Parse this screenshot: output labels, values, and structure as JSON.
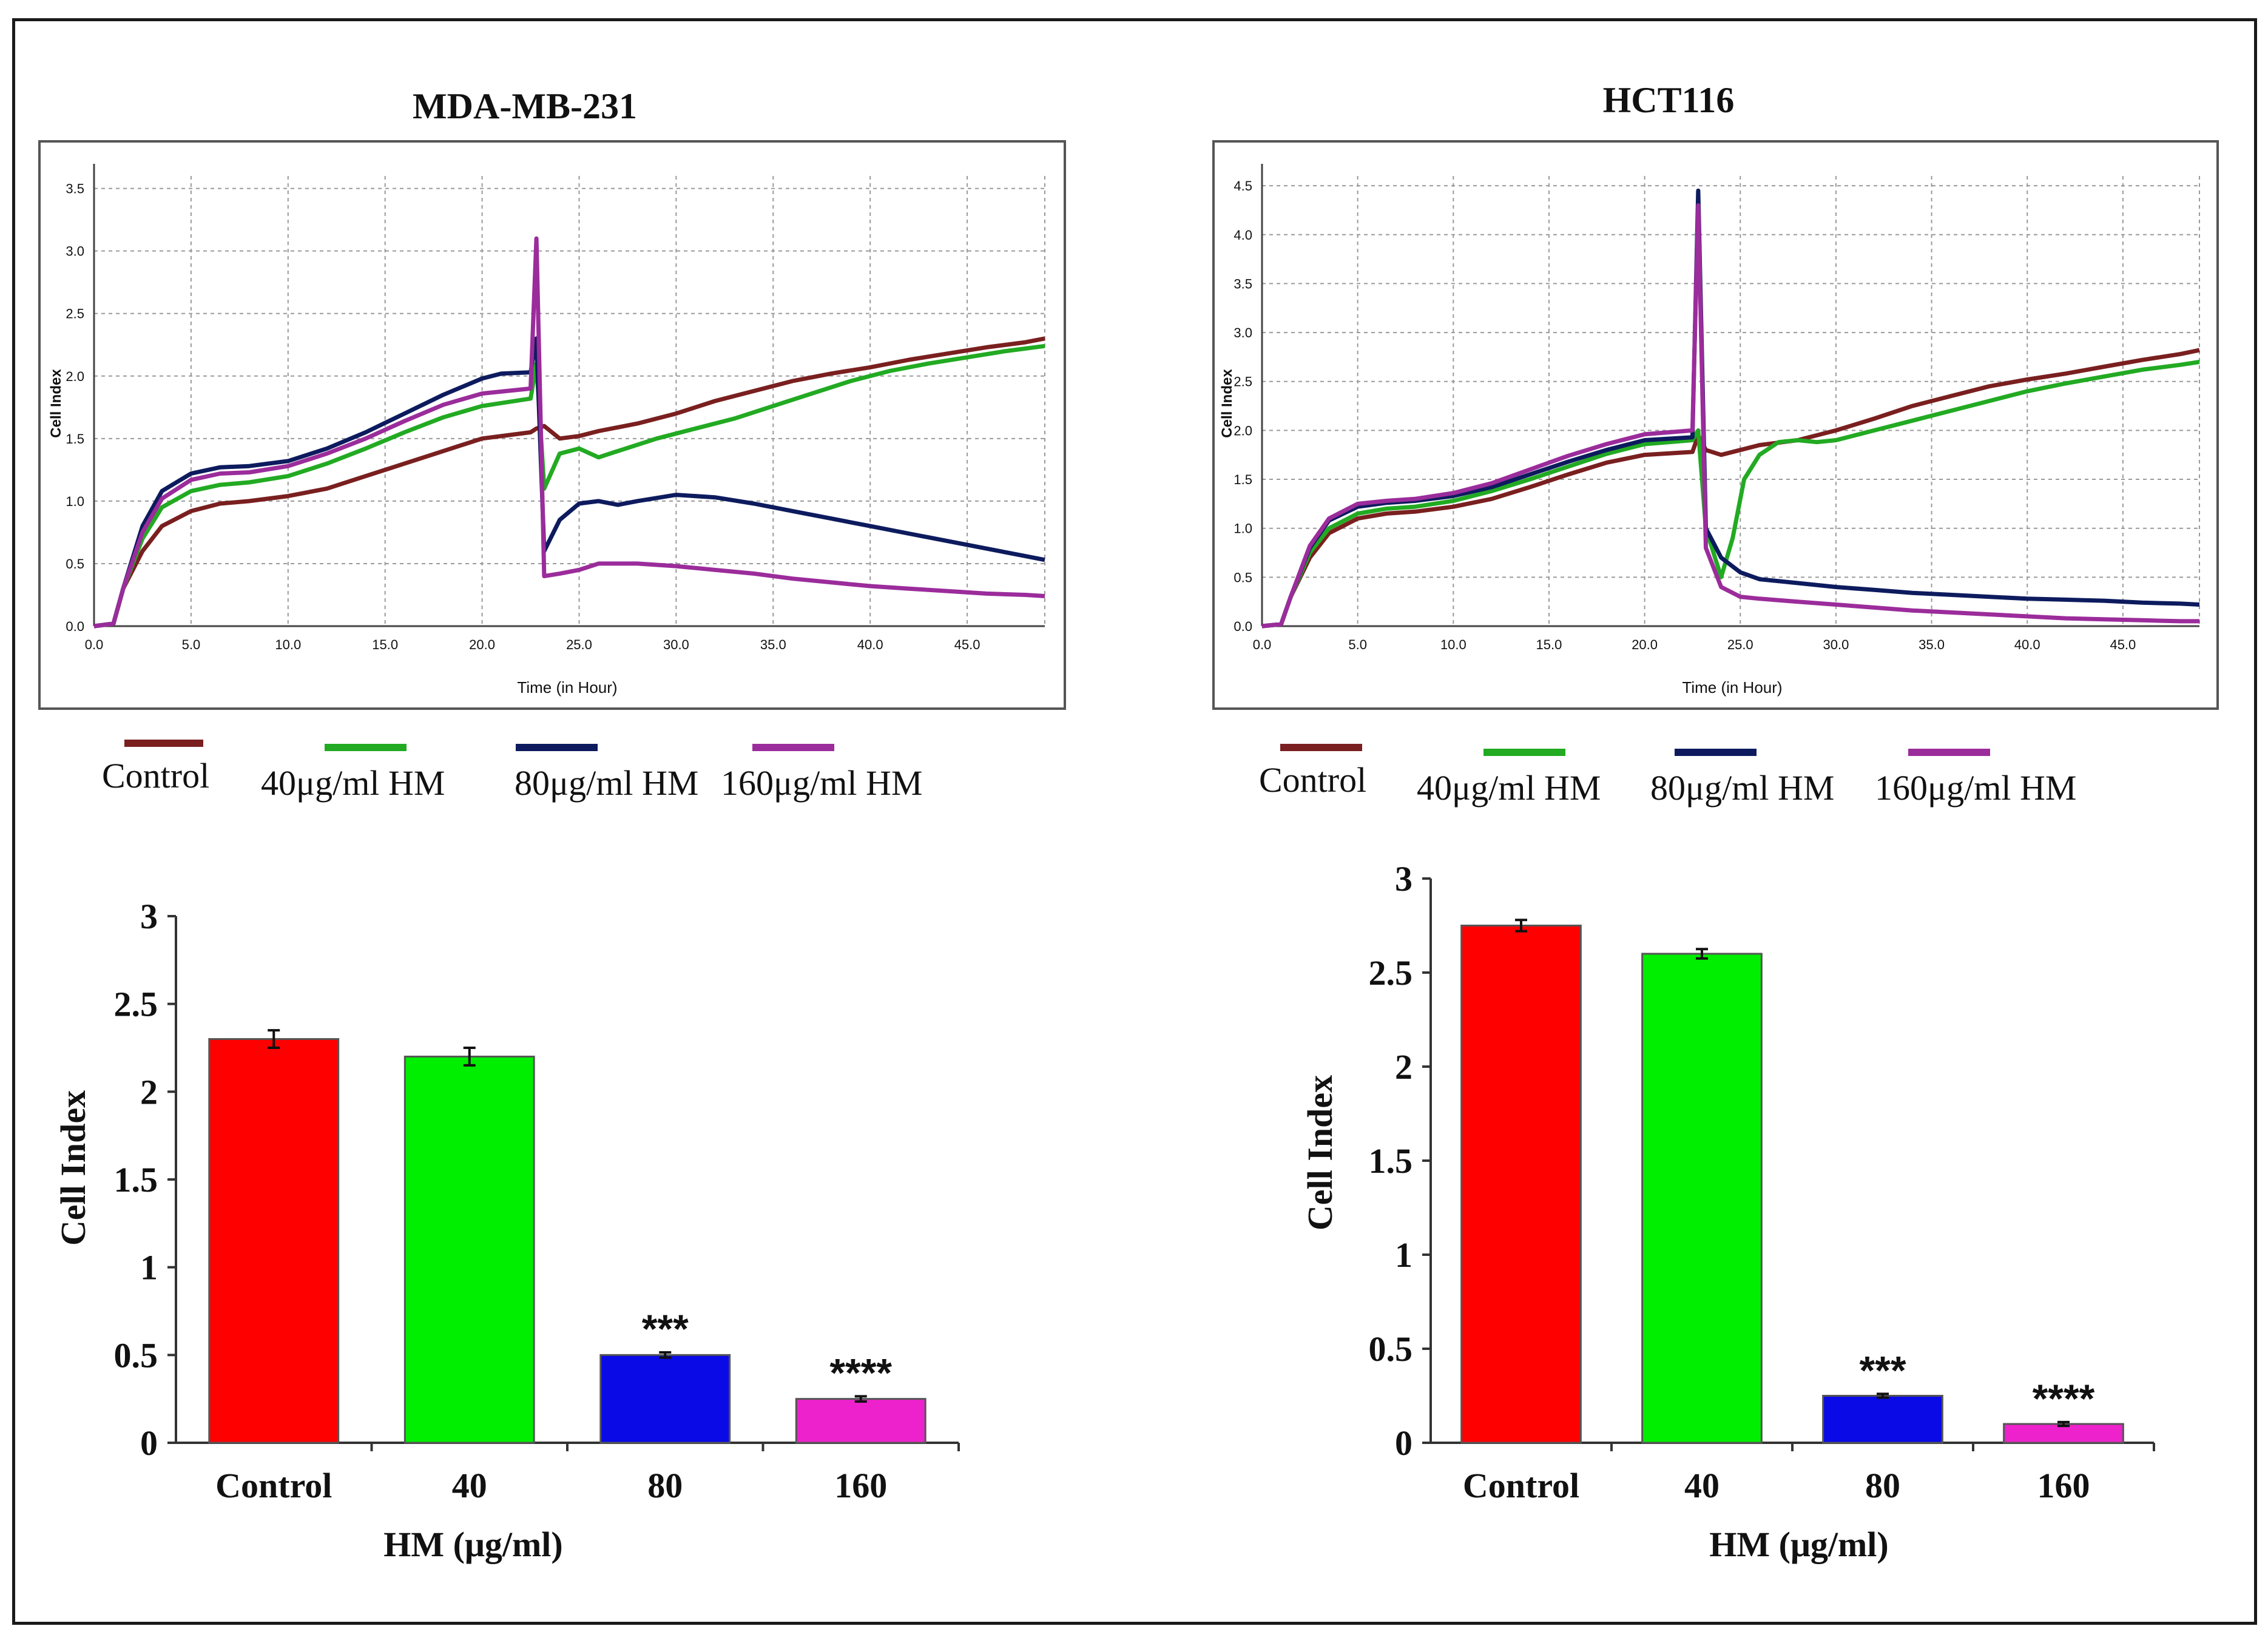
{
  "colors": {
    "control": "#7a1f1f",
    "hm40": "#22aa22",
    "hm80": "#0d1b5e",
    "hm160": "#9b2c9b",
    "bar_control": "#ff0000",
    "bar_hm40": "#00ee00",
    "bar_hm80": "#0a0ae6",
    "bar_hm160": "#ee22cc"
  },
  "legend": {
    "control": "Control",
    "hm40": "40μg/ml HM",
    "hm80": "80μg/ml HM",
    "hm160": "160μg/ml HM"
  },
  "chart_data": [
    {
      "id": "rtca-mda",
      "type": "line",
      "title": "MDA-MB-231",
      "xlabel": "Time (in Hour)",
      "ylabel": "Cell Index",
      "xlim": [
        0,
        49
      ],
      "ylim": [
        0,
        3.6
      ],
      "xticks": [
        "0.0",
        "5.0",
        "10.0",
        "15.0",
        "20.0",
        "25.0",
        "30.0",
        "35.0",
        "40.0",
        "45.0"
      ],
      "yticks": [
        "0.0",
        "0.5",
        "1.0",
        "1.5",
        "2.0",
        "2.5",
        "3.0",
        "3.5"
      ],
      "grid": true,
      "series": [
        {
          "name": "Control",
          "key": "control",
          "x": [
            0,
            1,
            1.5,
            2.5,
            3.5,
            5,
            6.5,
            8,
            10,
            12,
            14,
            16,
            18,
            20,
            22.5,
            22.8,
            23.2,
            24,
            25,
            26,
            28,
            30,
            32,
            34,
            36,
            38,
            40,
            42,
            44,
            46,
            48,
            49
          ],
          "y": [
            0,
            0.02,
            0.3,
            0.6,
            0.8,
            0.92,
            0.98,
            1.0,
            1.04,
            1.1,
            1.2,
            1.3,
            1.4,
            1.5,
            1.55,
            1.58,
            1.6,
            1.5,
            1.52,
            1.56,
            1.62,
            1.7,
            1.8,
            1.88,
            1.96,
            2.02,
            2.07,
            2.13,
            2.18,
            2.23,
            2.27,
            2.3
          ]
        },
        {
          "name": "40μg/ml HM",
          "key": "hm40",
          "x": [
            0,
            1,
            1.5,
            2.5,
            3.5,
            5,
            6.5,
            8,
            10,
            12,
            14,
            16,
            18,
            20,
            22.5,
            22.8,
            23.2,
            24,
            25,
            26,
            27,
            29,
            31,
            33,
            35,
            37,
            39,
            41,
            43,
            45,
            47,
            49
          ],
          "y": [
            0,
            0.02,
            0.3,
            0.7,
            0.95,
            1.08,
            1.13,
            1.15,
            1.2,
            1.3,
            1.42,
            1.55,
            1.67,
            1.76,
            1.82,
            2.1,
            1.1,
            1.38,
            1.42,
            1.35,
            1.4,
            1.5,
            1.58,
            1.66,
            1.76,
            1.86,
            1.96,
            2.04,
            2.1,
            2.15,
            2.2,
            2.24
          ]
        },
        {
          "name": "80μg/ml HM",
          "key": "hm80",
          "x": [
            0,
            1,
            1.5,
            2.5,
            3.5,
            5,
            6.5,
            8,
            10,
            12,
            14,
            16,
            18,
            20,
            21,
            22.5,
            22.8,
            23.2,
            24,
            25,
            26,
            27,
            28,
            30,
            32,
            34,
            36,
            38,
            40,
            42,
            44,
            46,
            48,
            49
          ],
          "y": [
            0,
            0.02,
            0.3,
            0.8,
            1.08,
            1.22,
            1.27,
            1.28,
            1.32,
            1.42,
            1.55,
            1.7,
            1.85,
            1.98,
            2.02,
            2.03,
            2.3,
            0.6,
            0.85,
            0.98,
            1.0,
            0.97,
            1.0,
            1.05,
            1.03,
            0.98,
            0.92,
            0.86,
            0.8,
            0.74,
            0.68,
            0.62,
            0.56,
            0.53
          ]
        },
        {
          "name": "160μg/ml HM",
          "key": "hm160",
          "x": [
            0,
            1,
            1.5,
            2.5,
            3.5,
            5,
            6.5,
            8,
            10,
            12,
            14,
            16,
            18,
            20,
            22.5,
            22.8,
            23.2,
            24,
            25,
            26,
            28,
            30,
            32,
            34,
            36,
            38,
            40,
            42,
            44,
            46,
            48,
            49
          ],
          "y": [
            0,
            0.02,
            0.3,
            0.75,
            1.02,
            1.17,
            1.22,
            1.23,
            1.28,
            1.38,
            1.5,
            1.64,
            1.77,
            1.86,
            1.9,
            3.1,
            0.4,
            0.42,
            0.45,
            0.5,
            0.5,
            0.48,
            0.45,
            0.42,
            0.38,
            0.35,
            0.32,
            0.3,
            0.28,
            0.26,
            0.25,
            0.24
          ]
        }
      ]
    },
    {
      "id": "rtca-hct",
      "type": "line",
      "title": "HCT116",
      "xlabel": "Time (in Hour)",
      "ylabel": "Cell Index",
      "xlim": [
        0,
        49
      ],
      "ylim": [
        0,
        4.6
      ],
      "xticks": [
        "0.0",
        "5.0",
        "10.0",
        "15.0",
        "20.0",
        "25.0",
        "30.0",
        "35.0",
        "40.0",
        "45.0"
      ],
      "yticks": [
        "0.0",
        "0.5",
        "1.0",
        "1.5",
        "2.0",
        "2.5",
        "3.0",
        "3.5",
        "4.0",
        "4.5"
      ],
      "grid": true,
      "series": [
        {
          "name": "Control",
          "key": "control",
          "x": [
            0,
            1,
            1.5,
            2.5,
            3.5,
            5,
            6.5,
            8,
            10,
            12,
            14,
            16,
            18,
            20,
            22.5,
            22.8,
            23.2,
            24,
            25,
            26,
            28,
            30,
            32,
            34,
            36,
            38,
            40,
            42,
            44,
            46,
            48,
            49
          ],
          "y": [
            0,
            0.02,
            0.3,
            0.7,
            0.95,
            1.1,
            1.15,
            1.17,
            1.22,
            1.3,
            1.42,
            1.55,
            1.67,
            1.75,
            1.78,
            1.95,
            1.8,
            1.75,
            1.8,
            1.85,
            1.9,
            2.0,
            2.12,
            2.25,
            2.35,
            2.45,
            2.52,
            2.58,
            2.65,
            2.72,
            2.78,
            2.82
          ]
        },
        {
          "name": "40μg/ml HM",
          "key": "hm40",
          "x": [
            0,
            1,
            1.5,
            2.5,
            3.5,
            5,
            6.5,
            8,
            10,
            12,
            14,
            16,
            18,
            20,
            22.5,
            22.8,
            23.2,
            24,
            24.6,
            25.2,
            26,
            27,
            28,
            29,
            30,
            32,
            34,
            36,
            38,
            40,
            42,
            44,
            46,
            48,
            49
          ],
          "y": [
            0,
            0.02,
            0.3,
            0.75,
            1.0,
            1.15,
            1.2,
            1.22,
            1.28,
            1.38,
            1.5,
            1.63,
            1.76,
            1.86,
            1.9,
            2.0,
            1.0,
            0.5,
            0.9,
            1.5,
            1.75,
            1.88,
            1.9,
            1.88,
            1.9,
            2.0,
            2.1,
            2.2,
            2.3,
            2.4,
            2.48,
            2.55,
            2.62,
            2.67,
            2.7
          ]
        },
        {
          "name": "80μg/ml HM",
          "key": "hm80",
          "x": [
            0,
            1,
            1.5,
            2.5,
            3.5,
            5,
            6.5,
            8,
            10,
            12,
            14,
            16,
            18,
            20,
            22.5,
            22.8,
            23.2,
            24,
            25,
            26,
            28,
            30,
            32,
            34,
            36,
            38,
            40,
            42,
            44,
            46,
            48,
            49
          ],
          "y": [
            0,
            0.02,
            0.3,
            0.8,
            1.08,
            1.22,
            1.26,
            1.28,
            1.33,
            1.42,
            1.55,
            1.68,
            1.8,
            1.9,
            1.93,
            4.45,
            1.0,
            0.7,
            0.55,
            0.48,
            0.44,
            0.4,
            0.37,
            0.34,
            0.32,
            0.3,
            0.28,
            0.27,
            0.26,
            0.24,
            0.23,
            0.22
          ]
        },
        {
          "name": "160μg/ml HM",
          "key": "hm160",
          "x": [
            0,
            1,
            1.5,
            2.5,
            3.5,
            5,
            6.5,
            8,
            10,
            12,
            14,
            16,
            18,
            20,
            22.5,
            22.8,
            23.2,
            24,
            25,
            26,
            28,
            30,
            32,
            34,
            36,
            38,
            40,
            42,
            44,
            46,
            48,
            49
          ],
          "y": [
            0,
            0.02,
            0.3,
            0.82,
            1.1,
            1.25,
            1.28,
            1.3,
            1.36,
            1.46,
            1.6,
            1.74,
            1.86,
            1.96,
            2.0,
            4.3,
            0.8,
            0.4,
            0.3,
            0.28,
            0.25,
            0.22,
            0.19,
            0.16,
            0.14,
            0.12,
            0.1,
            0.08,
            0.07,
            0.06,
            0.05,
            0.05
          ]
        }
      ]
    },
    {
      "id": "bar-mda",
      "type": "bar",
      "title": "",
      "xlabel": "HM (μg/ml)",
      "ylabel": "Cell Index",
      "ylim": [
        0,
        3
      ],
      "yticks": [
        "0",
        "0.5",
        "1",
        "1.5",
        "2",
        "2.5",
        "3"
      ],
      "categories": [
        "Control",
        "40",
        "80",
        "160"
      ],
      "values": [
        2.3,
        2.2,
        0.5,
        0.25
      ],
      "errors": [
        0.05,
        0.05,
        0.015,
        0.015
      ],
      "annotations": [
        "",
        "",
        "***",
        "****"
      ]
    },
    {
      "id": "bar-hct",
      "type": "bar",
      "title": "",
      "xlabel": "HM (μg/ml)",
      "ylabel": "Cell Index",
      "ylim": [
        0,
        3
      ],
      "yticks": [
        "0",
        "0.5",
        "1",
        "1.5",
        "2",
        "2.5",
        "3"
      ],
      "categories": [
        "Control",
        "40",
        "80",
        "160"
      ],
      "values": [
        2.75,
        2.6,
        0.25,
        0.1
      ],
      "errors": [
        0.03,
        0.025,
        0.01,
        0.01
      ],
      "annotations": [
        "",
        "",
        "***",
        "****"
      ]
    }
  ]
}
